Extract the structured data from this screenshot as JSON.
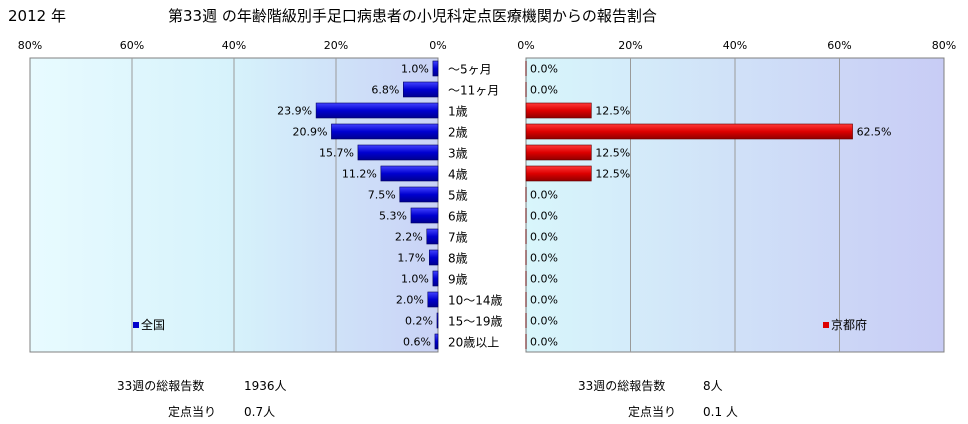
{
  "year_label": "2012 年",
  "title": "第33週 の年齢階級別手足口病患者の小児科定点医療機関からの報告割合",
  "chart_data": [
    {
      "type": "bar",
      "orientation": "horizontal",
      "direction": "right-to-left",
      "categories": [
        "～5ヶ月",
        "～11ヶ月",
        "1歳",
        "2歳",
        "3歳",
        "4歳",
        "5歳",
        "6歳",
        "7歳",
        "8歳",
        "9歳",
        "10～14歳",
        "15～19歳",
        "20歳以上"
      ],
      "series": [
        {
          "name": "全国",
          "color": "#0000cc",
          "values": [
            1.0,
            6.8,
            23.9,
            20.9,
            15.7,
            11.2,
            7.5,
            5.3,
            2.2,
            1.7,
            1.0,
            2.0,
            0.2,
            0.6
          ],
          "labels": [
            "1.0%",
            "6.8%",
            "23.9%",
            "20.9%",
            "15.7%",
            "11.2%",
            "7.5%",
            "5.3%",
            "2.2%",
            "1.7%",
            "1.0%",
            "2.0%",
            "0.2%",
            "0.6%"
          ]
        }
      ],
      "xlim": [
        0,
        80
      ],
      "ticks": [
        "80%",
        "60%",
        "40%",
        "20%",
        "0%"
      ],
      "grid": true,
      "legend": "bottom-left"
    },
    {
      "type": "bar",
      "orientation": "horizontal",
      "direction": "left-to-right",
      "categories": [
        "～5ヶ月",
        "～11ヶ月",
        "1歳",
        "2歳",
        "3歳",
        "4歳",
        "5歳",
        "6歳",
        "7歳",
        "8歳",
        "9歳",
        "10～14歳",
        "15～19歳",
        "20歳以上"
      ],
      "series": [
        {
          "name": "京都府",
          "color": "#dd0000",
          "values": [
            0.0,
            0.0,
            12.5,
            62.5,
            12.5,
            12.5,
            0.0,
            0.0,
            0.0,
            0.0,
            0.0,
            0.0,
            0.0,
            0.0
          ],
          "labels": [
            "0.0%",
            "0.0%",
            "12.5%",
            "62.5%",
            "12.5%",
            "12.5%",
            "0.0%",
            "0.0%",
            "0.0%",
            "0.0%",
            "0.0%",
            "0.0%",
            "0.0%",
            "0.0%"
          ]
        }
      ],
      "xlim": [
        0,
        80
      ],
      "ticks": [
        "0%",
        "20%",
        "40%",
        "60%",
        "80%"
      ],
      "grid": true,
      "legend": "bottom-right"
    }
  ],
  "summary": {
    "left": {
      "total_label": "33週の総報告数",
      "total_value": "1936人",
      "per_label": "定点当り",
      "per_value": "0.7人"
    },
    "right": {
      "total_label": "33週の総報告数",
      "total_value": "8人",
      "per_label": "定点当り",
      "per_value": "0.1 人"
    }
  }
}
